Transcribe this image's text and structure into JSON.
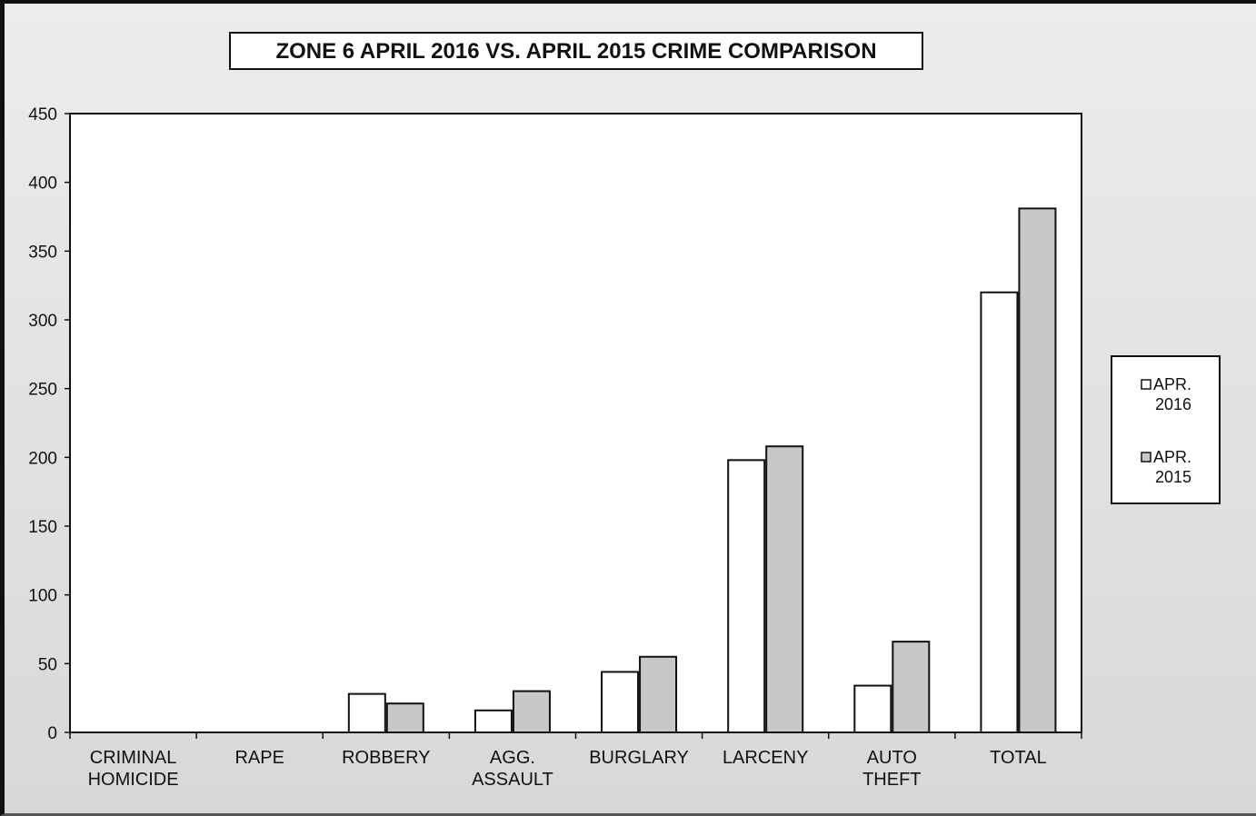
{
  "chart_data": {
    "type": "bar",
    "title": "ZONE 6  APRIL 2016 VS. APRIL 2015 CRIME COMPARISON",
    "xlabel": "",
    "ylabel": "",
    "ylim": [
      0,
      450
    ],
    "yticks": [
      "0",
      "50",
      "100",
      "150",
      "200",
      "250",
      "300",
      "350",
      "400",
      "450"
    ],
    "grid": false,
    "legend_position": "right",
    "categories": [
      [
        "CRIMINAL",
        "HOMICIDE"
      ],
      [
        "RAPE"
      ],
      [
        "ROBBERY"
      ],
      [
        "AGG.",
        "ASSAULT"
      ],
      [
        "BURGLARY"
      ],
      [
        "LARCENY"
      ],
      [
        "AUTO",
        "THEFT"
      ],
      [
        "TOTAL"
      ]
    ],
    "series": [
      {
        "name": [
          "APR.",
          "2016"
        ],
        "color": "#ffffff",
        "values": [
          0,
          0,
          28,
          16,
          44,
          198,
          34,
          320
        ]
      },
      {
        "name": [
          "APR.",
          "2015"
        ],
        "color": "#c8c8c8",
        "values": [
          0,
          0,
          21,
          30,
          55,
          208,
          66,
          381
        ]
      }
    ]
  }
}
